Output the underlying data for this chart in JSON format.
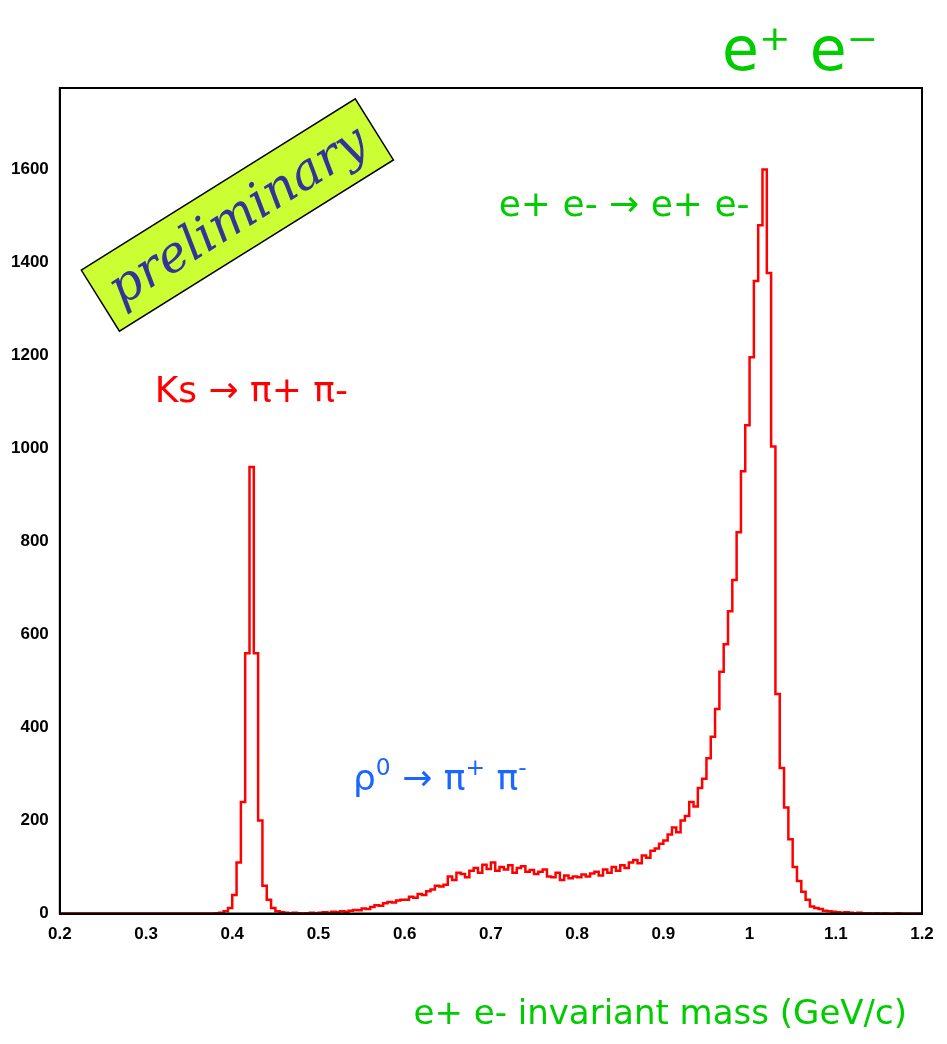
{
  "chart_data": {
    "type": "histogram",
    "title": "e⁺ e⁻",
    "xlabel": "e+ e- invariant mass (GeV/c)",
    "bins": [
      0.2,
      0.205,
      0.21,
      0.215,
      0.22,
      0.225,
      0.23,
      0.235,
      0.24,
      0.245,
      0.25,
      0.255,
      0.26,
      0.265,
      0.27,
      0.275,
      0.28,
      0.285,
      0.29,
      0.295,
      0.3,
      0.305,
      0.31,
      0.315,
      0.32,
      0.325,
      0.33,
      0.335,
      0.34,
      0.345,
      0.35,
      0.355,
      0.36,
      0.365,
      0.37,
      0.375,
      0.38,
      0.385,
      0.39,
      0.395,
      0.4,
      0.405,
      0.41,
      0.415,
      0.42,
      0.425,
      0.43,
      0.435,
      0.44,
      0.445,
      0.45,
      0.455,
      0.46,
      0.465,
      0.47,
      0.475,
      0.48,
      0.485,
      0.49,
      0.495,
      0.5,
      0.505,
      0.51,
      0.515,
      0.52,
      0.525,
      0.53,
      0.535,
      0.54,
      0.545,
      0.55,
      0.555,
      0.56,
      0.565,
      0.57,
      0.575,
      0.58,
      0.585,
      0.59,
      0.595,
      0.6,
      0.605,
      0.61,
      0.615,
      0.62,
      0.625,
      0.63,
      0.635,
      0.64,
      0.645,
      0.65,
      0.655,
      0.66,
      0.665,
      0.67,
      0.675,
      0.68,
      0.685,
      0.69,
      0.695,
      0.7,
      0.705,
      0.71,
      0.715,
      0.72,
      0.725,
      0.73,
      0.735,
      0.74,
      0.745,
      0.75,
      0.755,
      0.76,
      0.765,
      0.77,
      0.775,
      0.78,
      0.785,
      0.79,
      0.795,
      0.8,
      0.805,
      0.81,
      0.815,
      0.82,
      0.825,
      0.83,
      0.835,
      0.84,
      0.845,
      0.85,
      0.855,
      0.86,
      0.865,
      0.87,
      0.875,
      0.88,
      0.885,
      0.89,
      0.895,
      0.9,
      0.905,
      0.91,
      0.915,
      0.92,
      0.925,
      0.93,
      0.935,
      0.94,
      0.945,
      0.95,
      0.955,
      0.96,
      0.965,
      0.97,
      0.975,
      0.98,
      0.985,
      0.99,
      0.995,
      1.0,
      1.005,
      1.01,
      1.015,
      1.02,
      1.025,
      1.03,
      1.035,
      1.04,
      1.045,
      1.05,
      1.055,
      1.06,
      1.065,
      1.07,
      1.075,
      1.08,
      1.085,
      1.09,
      1.095,
      1.1,
      1.105,
      1.11,
      1.115,
      1.12,
      1.125,
      1.13,
      1.135,
      1.14,
      1.145,
      1.15,
      1.155,
      1.16,
      1.165,
      1.17,
      1.175,
      1.18,
      1.185,
      1.19,
      1.195,
      1.2
    ],
    "values": [
      0,
      0,
      0,
      0,
      0,
      0,
      0,
      0,
      0,
      0,
      0,
      0,
      0,
      0,
      0,
      0,
      0,
      0,
      0,
      0,
      0,
      0,
      0,
      0,
      0,
      0,
      0,
      0,
      0,
      0,
      0,
      0,
      0,
      0,
      0,
      0,
      1,
      2,
      5,
      12,
      40,
      110,
      240,
      560,
      960,
      560,
      200,
      60,
      30,
      12,
      5,
      3,
      2,
      1,
      2,
      1,
      0,
      1,
      2,
      1,
      2,
      3,
      2,
      4,
      3,
      5,
      4,
      6,
      8,
      7,
      11,
      10,
      14,
      18,
      17,
      22,
      25,
      24,
      28,
      30,
      30,
      36,
      34,
      42,
      40,
      48,
      52,
      60,
      58,
      62,
      80,
      72,
      88,
      85,
      78,
      92,
      98,
      88,
      105,
      96,
      110,
      92,
      100,
      95,
      104,
      88,
      98,
      102,
      90,
      94,
      85,
      90,
      95,
      80,
      78,
      88,
      72,
      82,
      76,
      80,
      78,
      84,
      80,
      86,
      90,
      82,
      95,
      88,
      100,
      92,
      104,
      98,
      110,
      115,
      108,
      125,
      120,
      135,
      140,
      150,
      157,
      170,
      185,
      175,
      200,
      210,
      240,
      230,
      270,
      290,
      334,
      380,
      440,
      520,
      579,
      650,
      717,
      820,
      951,
      1050,
      1196,
      1360,
      1480,
      1600,
      1377,
      1004,
      472,
      313,
      228,
      160,
      100,
      70,
      47,
      30,
      15,
      12,
      10,
      6,
      5,
      4,
      3,
      2,
      3,
      2,
      1,
      2,
      1,
      1,
      0,
      1,
      0,
      1,
      0,
      0,
      1,
      0,
      0,
      0,
      0,
      0
    ],
    "color": "#ff0000",
    "xlim": [
      0.2,
      1.2
    ],
    "xticks": [
      0.2,
      0.3,
      0.4,
      0.5,
      0.6,
      0.7,
      0.8,
      0.9,
      1,
      1.1,
      1.2
    ],
    "ylim": [
      0,
      1775
    ],
    "yticks": [
      0,
      200,
      400,
      600,
      800,
      1000,
      1200,
      1400,
      1600
    ],
    "annotations": [
      "preliminary",
      "Ks → π+ π-",
      "e+ e- → e+ e-",
      "ρ$^{0}$ → π$^{+}$ π$^{-}$"
    ]
  }
}
